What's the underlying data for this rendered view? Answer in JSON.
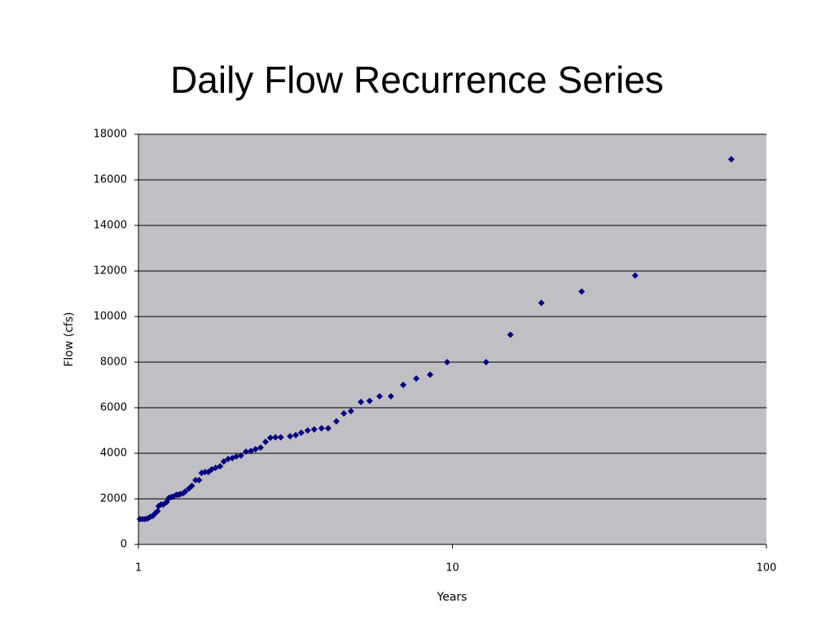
{
  "chart_data": {
    "type": "scatter",
    "title": "Daily Flow Recurrence Series",
    "x_label": "Years",
    "y_label": "Flow (cfs)",
    "xlog": true,
    "grid": true,
    "color": "#00007f",
    "background": "#c0bfc6",
    "xlim": [
      1,
      100
    ],
    "xticks": [
      1,
      10,
      100
    ],
    "ylim": [
      0,
      18000
    ],
    "yticks": [
      0,
      2000,
      4000,
      6000,
      8000,
      10000,
      12000,
      14000,
      16000,
      18000
    ],
    "x": [
      77.3,
      38.2,
      25.8,
      19.2,
      15.3,
      12.8,
      9.62,
      8.49,
      7.67,
      6.97,
      6.37,
      5.86,
      5.45,
      5.11,
      4.75,
      4.51,
      4.27,
      4.02,
      3.83,
      3.63,
      3.46,
      3.3,
      3.17,
      3.04,
      2.84,
      2.73,
      2.63,
      2.54,
      2.45,
      2.36,
      2.28,
      2.2,
      2.12,
      2.05,
      1.99,
      1.93,
      1.87,
      1.82,
      1.76,
      1.71,
      1.67,
      1.63,
      1.59,
      1.56,
      1.52,
      1.48,
      1.45,
      1.41,
      1.39,
      1.36,
      1.34,
      1.32,
      1.29,
      1.27,
      1.25,
      1.23,
      1.2,
      1.18,
      1.16,
      1.15,
      1.13,
      1.11,
      1.09,
      1.07,
      1.05,
      1.03,
      1.01
    ],
    "values": [
      16900,
      11800,
      11100,
      10600,
      9200,
      8000,
      8000,
      7450,
      7280,
      7000,
      6500,
      6500,
      6300,
      6250,
      5850,
      5750,
      5400,
      5100,
      5100,
      5050,
      5000,
      4900,
      4800,
      4750,
      4700,
      4700,
      4680,
      4500,
      4250,
      4180,
      4100,
      4070,
      3900,
      3860,
      3790,
      3750,
      3640,
      3430,
      3360,
      3290,
      3180,
      3180,
      3140,
      2820,
      2820,
      2570,
      2460,
      2320,
      2250,
      2210,
      2180,
      2180,
      2100,
      2070,
      2040,
      1860,
      1750,
      1750,
      1680,
      1460,
      1360,
      1250,
      1210,
      1140,
      1110,
      1110,
      1110
    ]
  }
}
